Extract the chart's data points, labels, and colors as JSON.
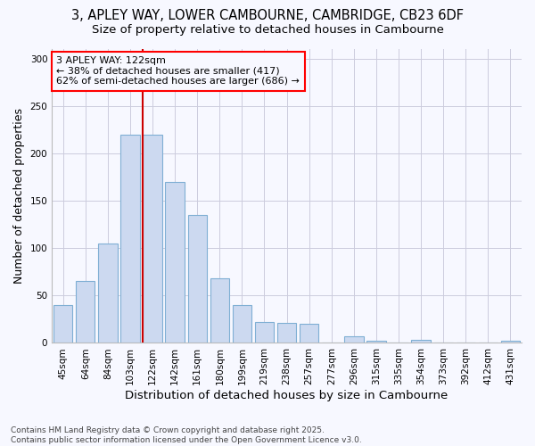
{
  "title1": "3, APLEY WAY, LOWER CAMBOURNE, CAMBRIDGE, CB23 6DF",
  "title2": "Size of property relative to detached houses in Cambourne",
  "xlabel": "Distribution of detached houses by size in Cambourne",
  "ylabel": "Number of detached properties",
  "categories": [
    "45sqm",
    "64sqm",
    "84sqm",
    "103sqm",
    "122sqm",
    "142sqm",
    "161sqm",
    "180sqm",
    "199sqm",
    "219sqm",
    "238sqm",
    "257sqm",
    "277sqm",
    "296sqm",
    "315sqm",
    "335sqm",
    "354sqm",
    "373sqm",
    "392sqm",
    "412sqm",
    "431sqm"
  ],
  "values": [
    40,
    65,
    105,
    220,
    220,
    170,
    135,
    68,
    40,
    22,
    21,
    20,
    0,
    7,
    2,
    0,
    3,
    0,
    0,
    0,
    2
  ],
  "bar_color": "#ccd9f0",
  "bar_edge_color": "#7fafd4",
  "vline_color": "#cc0000",
  "vline_bar_index": 4,
  "annotation_text": "3 APLEY WAY: 122sqm\n← 38% of detached houses are smaller (417)\n62% of semi-detached houses are larger (686) →",
  "ylim": [
    0,
    310
  ],
  "yticks": [
    0,
    50,
    100,
    150,
    200,
    250,
    300
  ],
  "footer": "Contains HM Land Registry data © Crown copyright and database right 2025.\nContains public sector information licensed under the Open Government Licence v3.0.",
  "bg_color": "#f7f8ff",
  "plot_bg_color": "#f7f8ff",
  "grid_color": "#ccccdd",
  "title_fontsize": 10.5,
  "subtitle_fontsize": 9.5,
  "axis_label_fontsize": 9,
  "tick_fontsize": 7.5,
  "annotation_fontsize": 8,
  "footer_fontsize": 6.5
}
